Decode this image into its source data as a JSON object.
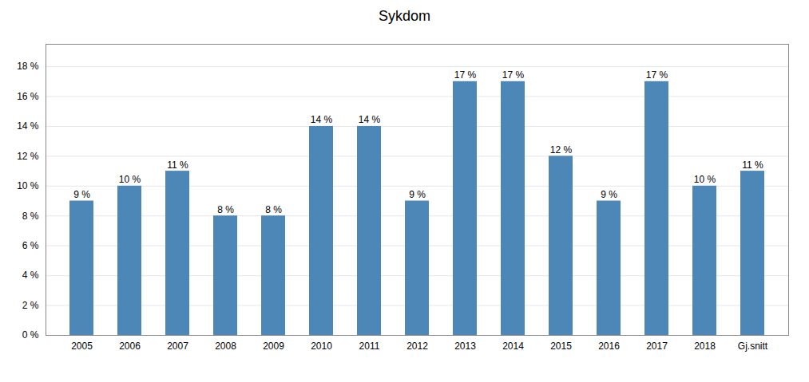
{
  "chart_data": {
    "type": "bar",
    "title": "Sykdom",
    "categories": [
      "2005",
      "2006",
      "2007",
      "2008",
      "2009",
      "2010",
      "2011",
      "2012",
      "2013",
      "2014",
      "2015",
      "2016",
      "2017",
      "2018",
      "Gj.snitt"
    ],
    "values": [
      9,
      10,
      11,
      8,
      8,
      14,
      14,
      9,
      17,
      17,
      12,
      9,
      17,
      10,
      11
    ],
    "value_labels": [
      "9 %",
      "10 %",
      "11 %",
      "8 %",
      "8 %",
      "14 %",
      "14 %",
      "9 %",
      "17 %",
      "17 %",
      "12 %",
      "9 %",
      "17 %",
      "10 %",
      "11 %"
    ],
    "data_labels": true,
    "color": "#4d87b8",
    "ylim": [
      0,
      19.5
    ],
    "yticks": [
      {
        "value": 0,
        "label": "0 %"
      },
      {
        "value": 2,
        "label": "2 %"
      },
      {
        "value": 4,
        "label": "4 %"
      },
      {
        "value": 6,
        "label": "6 %"
      },
      {
        "value": 8,
        "label": "8 %"
      },
      {
        "value": 10,
        "label": "10 %"
      },
      {
        "value": 12,
        "label": "12 %"
      },
      {
        "value": 14,
        "label": "14 %"
      },
      {
        "value": 16,
        "label": "16 %"
      },
      {
        "value": 18,
        "label": "18 %"
      }
    ],
    "grid": true
  }
}
